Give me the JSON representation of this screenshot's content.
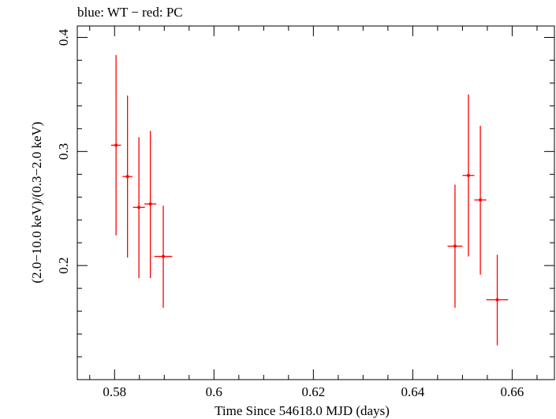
{
  "header": {
    "title": "blue: WT − red: PC"
  },
  "chart_data": {
    "type": "scatter",
    "title": "blue: WT − red: PC",
    "xlabel": "Time Since 54618.0 MJD (days)",
    "ylabel": "(2.0−10.0 keV)/(0.3−2.0 keV)",
    "xlim": [
      0.5725,
      0.6685
    ],
    "ylim": [
      0.1,
      0.41
    ],
    "x_ticks": [
      0.58,
      0.6,
      0.62,
      0.64,
      0.66
    ],
    "x_tick_labels": [
      "0.58",
      "0.6",
      "0.62",
      "0.64",
      "0.66"
    ],
    "y_ticks": [
      0.2,
      0.3,
      0.4
    ],
    "y_tick_labels": [
      "0.2",
      "0.3",
      "0.4"
    ],
    "grid": false,
    "series": [
      {
        "color": "#ff0000",
        "points": [
          {
            "x": 0.5803,
            "y": 0.3055,
            "xerr": 0.001,
            "ylo": 0.2265,
            "yhi": 0.3845
          },
          {
            "x": 0.5826,
            "y": 0.278,
            "xerr": 0.001,
            "ylo": 0.207,
            "yhi": 0.349
          },
          {
            "x": 0.5849,
            "y": 0.251,
            "xerr": 0.0012,
            "ylo": 0.189,
            "yhi": 0.3125
          },
          {
            "x": 0.5872,
            "y": 0.254,
            "xerr": 0.0012,
            "ylo": 0.189,
            "yhi": 0.318
          },
          {
            "x": 0.5898,
            "y": 0.208,
            "xerr": 0.0018,
            "ylo": 0.163,
            "yhi": 0.2525
          },
          {
            "x": 0.6485,
            "y": 0.217,
            "xerr": 0.0015,
            "ylo": 0.163,
            "yhi": 0.271
          },
          {
            "x": 0.6512,
            "y": 0.279,
            "xerr": 0.0012,
            "ylo": 0.208,
            "yhi": 0.35
          },
          {
            "x": 0.6536,
            "y": 0.2575,
            "xerr": 0.0012,
            "ylo": 0.192,
            "yhi": 0.3225
          },
          {
            "x": 0.657,
            "y": 0.17,
            "xerr": 0.0022,
            "ylo": 0.13,
            "yhi": 0.2095
          }
        ]
      }
    ]
  }
}
